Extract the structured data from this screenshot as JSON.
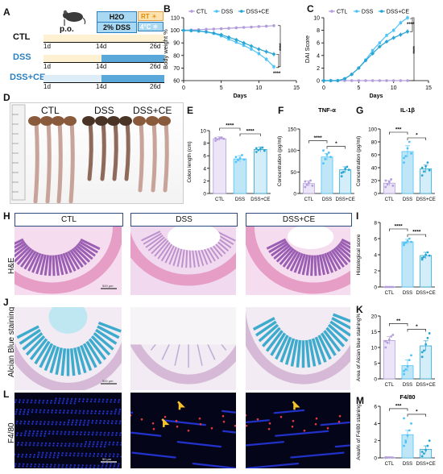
{
  "panel_letters": {
    "A": "A",
    "B": "B",
    "C": "C",
    "D": "D",
    "E": "E",
    "F": "F",
    "G": "G",
    "H": "H",
    "I": "I",
    "J": "J",
    "K": "K",
    "L": "L",
    "M": "M"
  },
  "schematic": {
    "route": "p.o.",
    "water": "H2O",
    "dss": "2% DSS",
    "rt": "RT",
    "cold": "4°C",
    "groups": [
      {
        "name": "CTL",
        "color": "#111111",
        "start": "1d",
        "mid": "14d",
        "end": "26d"
      },
      {
        "name": "DSS",
        "color": "#2a7fc0",
        "start": "1d",
        "mid": "14d",
        "end": "26d"
      },
      {
        "name": "DSS+CE",
        "color": "#2a7fc0",
        "start": "1d",
        "mid": "14d",
        "end": "26d"
      }
    ]
  },
  "colon_photo": {
    "groups": [
      "CTL",
      "DSS",
      "DSS+CE"
    ]
  },
  "micrographs": {
    "columns": [
      "CTL",
      "DSS",
      "DSS+CE"
    ],
    "rows": [
      "H&E",
      "Alcian Blue staining",
      "F4/80"
    ],
    "scalebar_he": "500 μm",
    "scalebar_ab": "500 μm",
    "scalebar_f4": "50 μm"
  },
  "colors": {
    "ctl": "#b39ddb",
    "dss": "#4fc3f7",
    "dssce": "#29a5d4",
    "bar_dss": "#bfe6f7",
    "bar_ce": "#d4eef9",
    "bar_ctl": "#ece5f7"
  },
  "chart_data": [
    {
      "id": "B",
      "type": "line",
      "title": "",
      "xlabel": "Days",
      "ylabel": "Body weight %",
      "xlim": [
        0,
        15
      ],
      "ylim": [
        60,
        110
      ],
      "xticks": [
        0,
        5,
        10,
        15
      ],
      "yticks": [
        60,
        70,
        80,
        90,
        100,
        110
      ],
      "series": [
        {
          "name": "CTL",
          "x": [
            0,
            1,
            2,
            3,
            4,
            5,
            6,
            7,
            8,
            9,
            10,
            11,
            12
          ],
          "y": [
            100,
            100.3,
            100.5,
            100.8,
            101,
            101.3,
            101.6,
            102,
            102.3,
            102.6,
            103,
            103.3,
            103.7
          ]
        },
        {
          "name": "DSS",
          "x": [
            0,
            1,
            2,
            3,
            4,
            5,
            6,
            7,
            8,
            9,
            10,
            11,
            12
          ],
          "y": [
            100,
            99.8,
            99.3,
            98.7,
            97.5,
            95.5,
            93,
            90.5,
            88,
            85,
            81.5,
            77,
            71
          ]
        },
        {
          "name": "DSS+CE",
          "x": [
            0,
            1,
            2,
            3,
            4,
            5,
            6,
            7,
            8,
            9,
            10,
            11,
            12
          ],
          "y": [
            100,
            99.7,
            99.5,
            98.8,
            97.8,
            96.5,
            94.5,
            92.5,
            90,
            87.5,
            85,
            83,
            81
          ]
        }
      ],
      "legend": [
        "CTL",
        "DSS",
        "DSS+CE"
      ],
      "annotations": [
        "****",
        "****"
      ]
    },
    {
      "id": "C",
      "type": "line",
      "title": "",
      "xlabel": "Days",
      "ylabel": "DAI Score",
      "xlim": [
        0,
        15
      ],
      "ylim": [
        0,
        10
      ],
      "xticks": [
        0,
        5,
        10,
        15
      ],
      "yticks": [
        0,
        2,
        4,
        6,
        8,
        10
      ],
      "series": [
        {
          "name": "CTL",
          "x": [
            0,
            1,
            2,
            3,
            4,
            5,
            6,
            7,
            8,
            9,
            10,
            11,
            12
          ],
          "y": [
            0,
            0,
            0,
            0,
            0,
            0,
            0,
            0,
            0,
            0,
            0,
            0,
            0
          ]
        },
        {
          "name": "DSS",
          "x": [
            0,
            1,
            2,
            3,
            4,
            5,
            6,
            7,
            8,
            9,
            10,
            11,
            12
          ],
          "y": [
            0,
            0,
            0,
            0.3,
            1,
            2,
            3.3,
            4.8,
            6,
            7.2,
            8,
            9.2,
            10
          ]
        },
        {
          "name": "DSS+CE",
          "x": [
            0,
            1,
            2,
            3,
            4,
            5,
            6,
            7,
            8,
            9,
            10,
            11,
            12
          ],
          "y": [
            0,
            0,
            0,
            0.3,
            1,
            2,
            3.2,
            4.3,
            5.4,
            6.2,
            6.8,
            7.3,
            7.8
          ]
        }
      ],
      "legend": [
        "CTL",
        "DSS",
        "DSS+CE"
      ],
      "annotations": [
        "****",
        "****"
      ]
    },
    {
      "id": "E",
      "type": "bar",
      "title": "",
      "ylabel": "Colon length (cm)",
      "categories": [
        "CTL",
        "DSS",
        "DSS+CE"
      ],
      "values": [
        8.7,
        5.5,
        7.0
      ],
      "errors": [
        0.3,
        0.5,
        0.4
      ],
      "ylim": [
        0,
        10
      ],
      "yticks": [
        0,
        2,
        4,
        6,
        8,
        10
      ],
      "points": [
        [
          8.4,
          8.6,
          8.8,
          8.9,
          8.7,
          8.8
        ],
        [
          5.0,
          5.3,
          5.6,
          6.1,
          5.4,
          5.8
        ],
        [
          6.6,
          6.9,
          7.1,
          7.3,
          6.8,
          7.2
        ]
      ],
      "annotations": [
        "****",
        "****"
      ]
    },
    {
      "id": "F",
      "type": "bar",
      "title": "TNF-α",
      "ylabel": "Concentration (pg/ml)",
      "categories": [
        "CTL",
        "DSS",
        "DSS+CE"
      ],
      "values": [
        23,
        85,
        55
      ],
      "errors": [
        6,
        8,
        7
      ],
      "ylim": [
        0,
        150
      ],
      "yticks": [
        0,
        50,
        100,
        150
      ],
      "points": [
        [
          15,
          20,
          25,
          30,
          18,
          28
        ],
        [
          70,
          80,
          90,
          95,
          85,
          100
        ],
        [
          40,
          50,
          58,
          62,
          55,
          48
        ]
      ],
      "annotations": [
        "****",
        "*"
      ]
    },
    {
      "id": "G",
      "type": "bar",
      "title": "IL-1β",
      "ylabel": "Concentration (pg/ml)",
      "categories": [
        "CTL",
        "DSS",
        "DSS+CE"
      ],
      "values": [
        16,
        65,
        38
      ],
      "errors": [
        4,
        9,
        6
      ],
      "ylim": [
        0,
        100
      ],
      "yticks": [
        0,
        20,
        40,
        60,
        80,
        100
      ],
      "points": [
        [
          10,
          14,
          18,
          22,
          12,
          20
        ],
        [
          48,
          58,
          70,
          80,
          62,
          55
        ],
        [
          28,
          34,
          42,
          48,
          36,
          40
        ]
      ],
      "annotations": [
        "***",
        "*"
      ]
    },
    {
      "id": "I",
      "type": "bar",
      "title": "",
      "ylabel": "Histological score",
      "categories": [
        "CTL",
        "DSS",
        "DSS+CE"
      ],
      "values": [
        0,
        5.6,
        3.9
      ],
      "errors": [
        0,
        0.3,
        0.4
      ],
      "ylim": [
        0,
        8
      ],
      "yticks": [
        0,
        2,
        4,
        6,
        8
      ],
      "points": [
        [
          0,
          0,
          0,
          0,
          0,
          0
        ],
        [
          5.2,
          5.5,
          5.7,
          6.0,
          5.6,
          5.4
        ],
        [
          3.4,
          3.7,
          4.0,
          4.3,
          3.9,
          3.6
        ]
      ],
      "annotations": [
        "****",
        "****"
      ]
    },
    {
      "id": "K",
      "type": "bar",
      "title": "",
      "ylabel": "Area of Alcian blue staining%",
      "categories": [
        "CTL",
        "DSS",
        "DSS+CE"
      ],
      "values": [
        12.2,
        4.2,
        10.5
      ],
      "errors": [
        1.2,
        1.8,
        1.6
      ],
      "ylim": [
        0,
        20
      ],
      "yticks": [
        0,
        5,
        10,
        15,
        20
      ],
      "points": [
        [
          10,
          11.5,
          12.5,
          13.5,
          14,
          12
        ],
        [
          1.5,
          3,
          4,
          6,
          7.5,
          2.5
        ],
        [
          7,
          9,
          11,
          13,
          14.5,
          8.5
        ]
      ],
      "annotations": [
        "**",
        "*"
      ]
    },
    {
      "id": "M",
      "type": "bar",
      "title": "F4/80",
      "ylabel": "Area% of F4/80 staining",
      "categories": [
        "CTL",
        "DSS",
        "DSS+CE"
      ],
      "values": [
        0.05,
        2.7,
        1.0
      ],
      "errors": [
        0.03,
        0.5,
        0.4
      ],
      "ylim": [
        0,
        6
      ],
      "yticks": [
        0,
        2,
        4,
        6
      ],
      "points": [
        [
          0.02,
          0.04,
          0.06,
          0.05,
          0.03,
          0.07
        ],
        [
          1.4,
          2.0,
          2.6,
          3.2,
          4.0,
          4.6,
          1.8
        ],
        [
          0.2,
          0.5,
          0.9,
          1.4,
          2.0,
          0.7
        ]
      ],
      "annotations": [
        "***",
        "*"
      ]
    }
  ]
}
